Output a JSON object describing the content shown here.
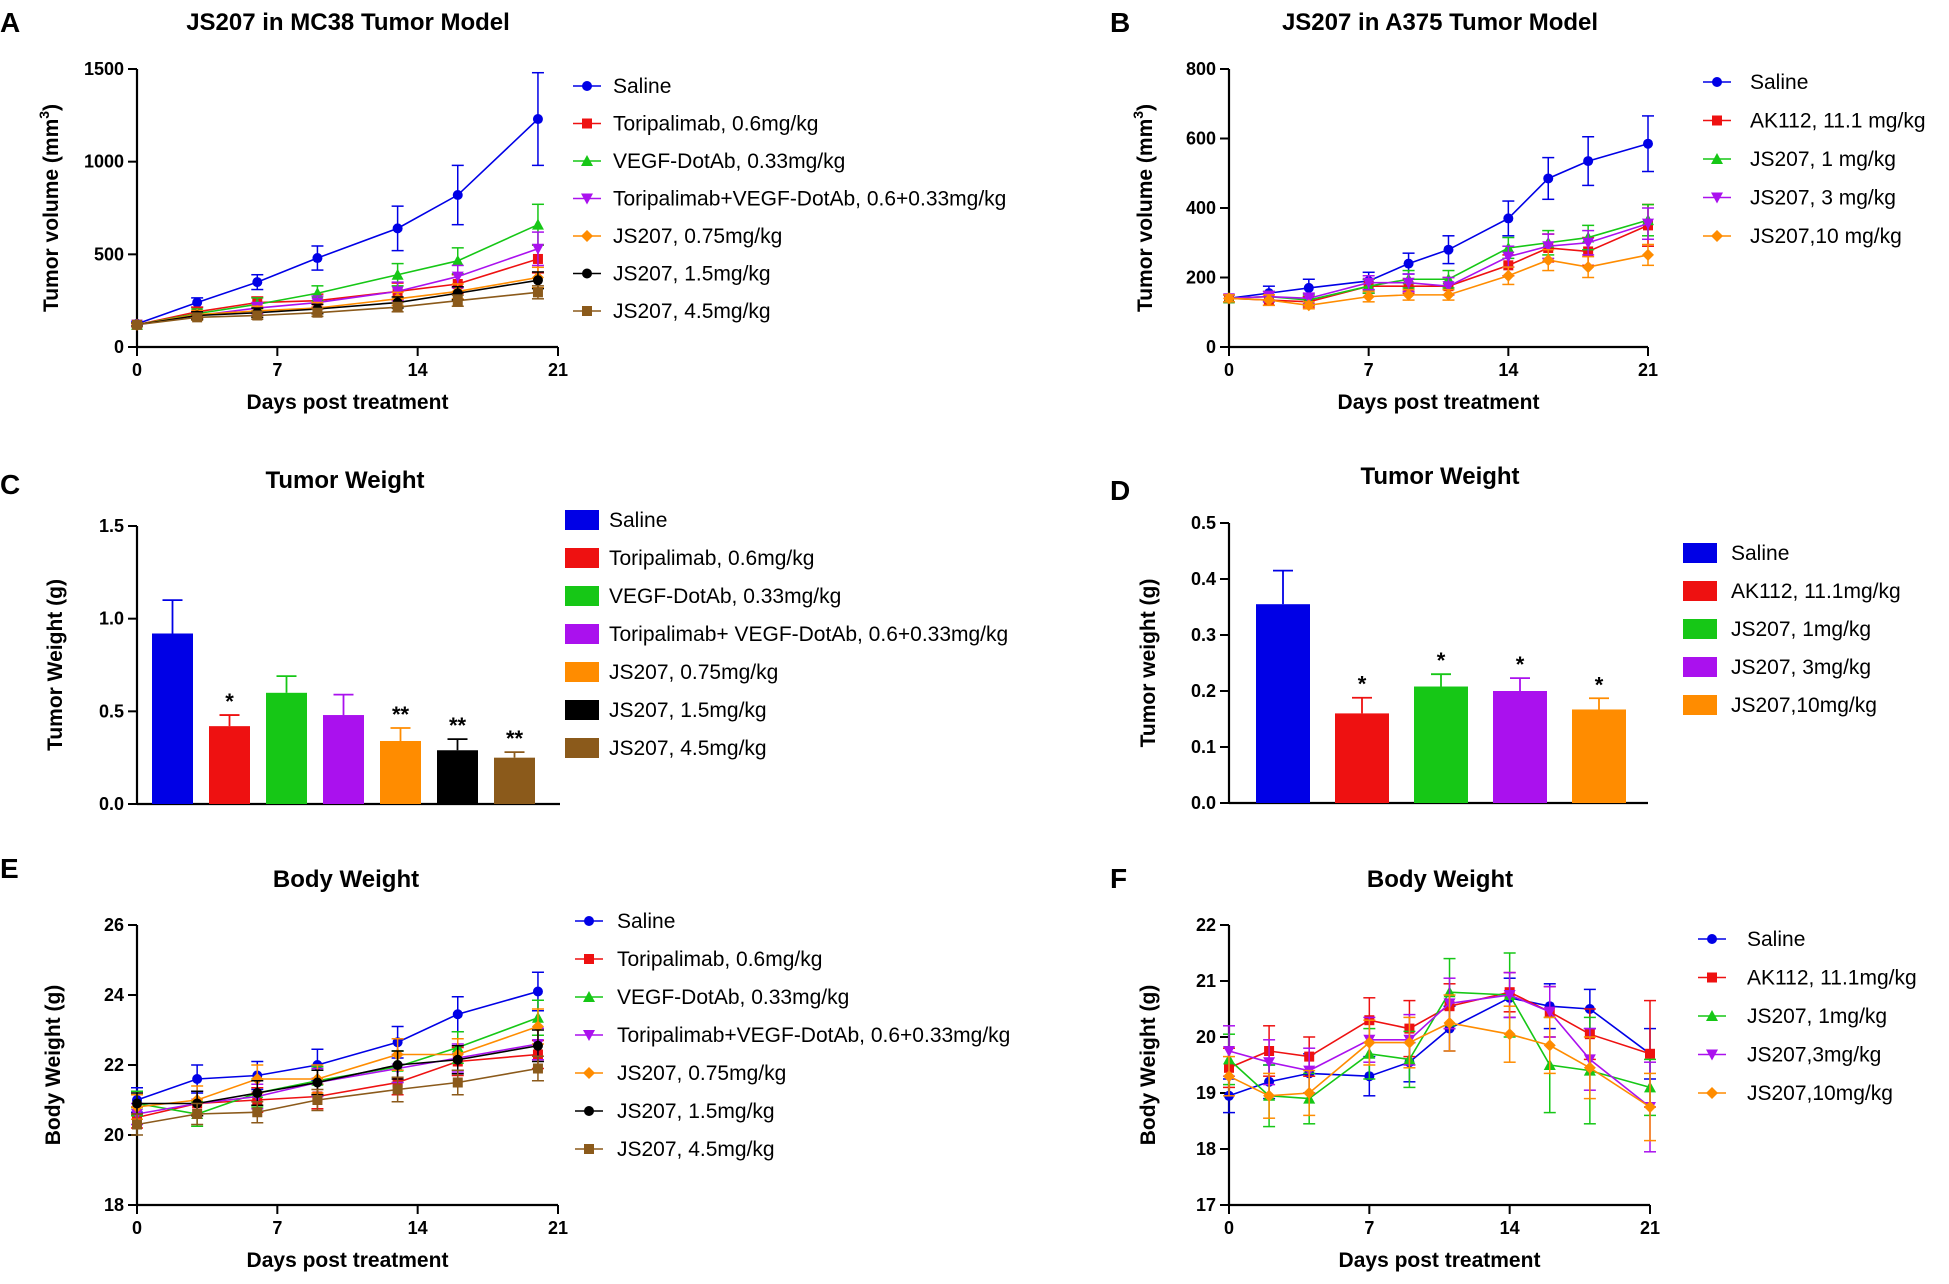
{
  "panels": {
    "A": "A",
    "B": "B",
    "C": "C",
    "D": "D",
    "E": "E",
    "F": "F"
  },
  "colors": {
    "blue": "#0000e6",
    "red": "#ee1111",
    "green": "#16c716",
    "purple": "#aa11ee",
    "orange": "#ff8c00",
    "black": "#000000",
    "brown": "#8b5a1b"
  },
  "chart_data": [
    {
      "id": "A",
      "type": "line",
      "title": "JS207 in MC38 Tumor Model",
      "xlabel": "Days post treatment",
      "ylabel": "Tumor volume (mm³)",
      "ylabel_main": "Tumor volume (mm",
      "ylabel_sup": "3",
      "ylabel_end": ")",
      "xlim": [
        0,
        21
      ],
      "ylim": [
        0,
        1500
      ],
      "xticks": [
        0,
        7,
        14,
        21
      ],
      "yticks": [
        0,
        500,
        1000,
        1500
      ],
      "x": [
        0,
        3,
        6,
        9,
        13,
        16,
        20
      ],
      "series": [
        {
          "name": "Saline",
          "color": "blue",
          "marker": "circle",
          "values": [
            125,
            240,
            350,
            480,
            640,
            820,
            1230
          ],
          "err": [
            10,
            25,
            40,
            65,
            120,
            160,
            250
          ]
        },
        {
          "name": "Toripalimab, 0.6mg/kg",
          "color": "red",
          "marker": "square",
          "values": [
            120,
            190,
            240,
            250,
            300,
            340,
            475
          ],
          "err": [
            10,
            25,
            30,
            35,
            45,
            50,
            75
          ]
        },
        {
          "name": "VEGF-DotAb, 0.33mg/kg",
          "color": "green",
          "marker": "triangle",
          "values": [
            120,
            180,
            230,
            290,
            390,
            465,
            660
          ],
          "err": [
            10,
            25,
            35,
            40,
            60,
            70,
            110
          ]
        },
        {
          "name": "Toripalimab+VEGF-DotAb, 0.6+0.33mg/kg",
          "color": "purple",
          "marker": "triangle-down",
          "values": [
            120,
            170,
            210,
            240,
            300,
            380,
            530
          ],
          "err": [
            10,
            20,
            30,
            35,
            50,
            60,
            90
          ]
        },
        {
          "name": "JS207, 0.75mg/kg",
          "color": "orange",
          "marker": "diamond",
          "values": [
            120,
            175,
            195,
            210,
            260,
            300,
            375
          ],
          "err": [
            10,
            20,
            25,
            30,
            35,
            40,
            55
          ]
        },
        {
          "name": "JS207, 1.5mg/kg",
          "color": "black",
          "marker": "circle",
          "values": [
            120,
            170,
            185,
            205,
            240,
            290,
            360
          ],
          "err": [
            10,
            20,
            25,
            25,
            30,
            35,
            45
          ]
        },
        {
          "name": "JS207, 4.5mg/kg",
          "color": "brown",
          "marker": "square",
          "values": [
            120,
            160,
            170,
            185,
            215,
            250,
            295
          ],
          "err": [
            10,
            15,
            20,
            20,
            25,
            30,
            35
          ]
        }
      ]
    },
    {
      "id": "B",
      "type": "line",
      "title": "JS207 in A375 Tumor Model",
      "xlabel": "Days post treatment",
      "ylabel": "Tumor volume (mm³)",
      "ylabel_main": "Tumor volume (mm",
      "ylabel_sup": "3",
      "ylabel_end": ")",
      "xlim": [
        0,
        21
      ],
      "ylim": [
        0,
        800
      ],
      "xticks": [
        0,
        7,
        14,
        21
      ],
      "yticks": [
        0,
        200,
        400,
        600,
        800
      ],
      "x": [
        0,
        2,
        4,
        7,
        9,
        11,
        14,
        16,
        18,
        21
      ],
      "series": [
        {
          "name": "Saline",
          "color": "blue",
          "marker": "circle",
          "values": [
            140,
            155,
            170,
            190,
            240,
            280,
            370,
            485,
            535,
            585
          ],
          "err": [
            10,
            20,
            25,
            25,
            30,
            40,
            50,
            60,
            70,
            80
          ]
        },
        {
          "name": "AK112, 11.1 mg/kg",
          "color": "red",
          "marker": "square",
          "values": [
            140,
            135,
            130,
            175,
            175,
            175,
            235,
            285,
            275,
            350
          ],
          "err": [
            10,
            15,
            15,
            20,
            20,
            25,
            30,
            40,
            40,
            60
          ]
        },
        {
          "name": "JS207, 1 mg/kg",
          "color": "green",
          "marker": "triangle",
          "values": [
            140,
            145,
            135,
            175,
            195,
            195,
            285,
            300,
            315,
            365
          ],
          "err": [
            10,
            15,
            15,
            20,
            25,
            25,
            30,
            35,
            35,
            45
          ]
        },
        {
          "name": "JS207, 3 mg/kg",
          "color": "purple",
          "marker": "triangle-down",
          "values": [
            140,
            145,
            140,
            185,
            185,
            175,
            260,
            290,
            300,
            355
          ],
          "err": [
            10,
            15,
            15,
            20,
            25,
            25,
            30,
            35,
            35,
            45
          ]
        },
        {
          "name": "JS207,10 mg/kg",
          "color": "orange",
          "marker": "diamond",
          "values": [
            140,
            135,
            120,
            145,
            150,
            150,
            205,
            250,
            230,
            265
          ],
          "err": [
            10,
            15,
            10,
            15,
            15,
            15,
            25,
            30,
            30,
            30
          ]
        }
      ]
    },
    {
      "id": "C",
      "type": "bar",
      "title": "Tumor Weight",
      "xlabel": "",
      "ylabel": "Tumor Weight (g)",
      "ylim": [
        0,
        1.5
      ],
      "yticks": [
        "0.0",
        "0.5",
        "1.0",
        "1.5"
      ],
      "ytick_values": [
        0,
        0.5,
        1.0,
        1.5
      ],
      "categories": [
        "Saline",
        "Toripalimab, 0.6mg/kg",
        "VEGF-DotAb, 0.33mg/kg",
        "Toripalimab+ VEGF-DotAb, 0.6+0.33mg/kg",
        "JS207, 0.75mg/kg",
        "JS207, 1.5mg/kg",
        "JS207, 4.5mg/kg"
      ],
      "colors": [
        "blue",
        "red",
        "green",
        "purple",
        "orange",
        "black",
        "brown"
      ],
      "values": [
        0.92,
        0.42,
        0.6,
        0.48,
        0.34,
        0.29,
        0.25
      ],
      "err": [
        0.18,
        0.06,
        0.09,
        0.11,
        0.07,
        0.06,
        0.03
      ],
      "significance": [
        "",
        "*",
        "",
        "",
        "**",
        "**",
        "**"
      ]
    },
    {
      "id": "D",
      "type": "bar",
      "title": "Tumor Weight",
      "xlabel": "",
      "ylabel": "Tumor weight (g)",
      "ylim": [
        0,
        0.5
      ],
      "yticks": [
        "0.0",
        "0.1",
        "0.2",
        "0.3",
        "0.4",
        "0.5"
      ],
      "ytick_values": [
        0,
        0.1,
        0.2,
        0.3,
        0.4,
        0.5
      ],
      "categories": [
        "Saline",
        "AK112, 11.1mg/kg",
        "JS207, 1mg/kg",
        "JS207, 3mg/kg",
        "JS207,10mg/kg"
      ],
      "colors": [
        "blue",
        "red",
        "green",
        "purple",
        "orange"
      ],
      "values": [
        0.355,
        0.16,
        0.208,
        0.2,
        0.167
      ],
      "err": [
        0.06,
        0.028,
        0.022,
        0.023,
        0.02
      ],
      "significance": [
        "",
        "*",
        "*",
        "*",
        "*"
      ]
    },
    {
      "id": "E",
      "type": "line",
      "title": "Body Weight",
      "xlabel": "Days post treatment",
      "ylabel": "Body Weight (g)",
      "xlim": [
        0,
        21
      ],
      "ylim": [
        18,
        26
      ],
      "xticks": [
        0,
        7,
        14,
        21
      ],
      "yticks": [
        18,
        20,
        22,
        24,
        26
      ],
      "x": [
        0,
        3,
        6,
        9,
        13,
        16,
        20
      ],
      "series": [
        {
          "name": "Saline",
          "color": "blue",
          "marker": "circle",
          "values": [
            21.0,
            21.6,
            21.7,
            22.0,
            22.65,
            23.45,
            24.1
          ],
          "err": [
            0.35,
            0.4,
            0.4,
            0.45,
            0.45,
            0.5,
            0.55
          ]
        },
        {
          "name": "Toripalimab, 0.6mg/kg",
          "color": "red",
          "marker": "square",
          "values": [
            20.5,
            20.9,
            21.0,
            21.1,
            21.5,
            22.1,
            22.3
          ],
          "err": [
            0.3,
            0.35,
            0.35,
            0.35,
            0.35,
            0.4,
            0.4
          ]
        },
        {
          "name": "VEGF-DotAb, 0.33mg/kg",
          "color": "green",
          "marker": "triangle",
          "values": [
            20.9,
            20.6,
            21.2,
            21.55,
            21.95,
            22.5,
            23.35
          ],
          "err": [
            0.35,
            0.35,
            0.4,
            0.4,
            0.45,
            0.45,
            0.5
          ]
        },
        {
          "name": "Toripalimab+VEGF-DotAb, 0.6+0.33mg/kg",
          "color": "purple",
          "marker": "triangle-down",
          "values": [
            20.6,
            20.9,
            21.1,
            21.5,
            21.9,
            22.2,
            22.6
          ],
          "err": [
            0.3,
            0.35,
            0.35,
            0.4,
            0.4,
            0.4,
            0.45
          ]
        },
        {
          "name": "JS207, 0.75mg/kg",
          "color": "orange",
          "marker": "diamond",
          "values": [
            20.8,
            21.0,
            21.6,
            21.6,
            22.3,
            22.3,
            23.1
          ],
          "err": [
            0.35,
            0.4,
            0.4,
            0.4,
            0.45,
            0.45,
            0.5
          ]
        },
        {
          "name": "JS207, 1.5mg/kg",
          "color": "black",
          "marker": "circle",
          "values": [
            20.9,
            20.9,
            21.2,
            21.5,
            22.0,
            22.15,
            22.55
          ],
          "err": [
            0.3,
            0.35,
            0.35,
            0.35,
            0.4,
            0.4,
            0.45
          ]
        },
        {
          "name": "JS207, 4.5mg/kg",
          "color": "brown",
          "marker": "square",
          "values": [
            20.3,
            20.6,
            20.65,
            21.0,
            21.3,
            21.5,
            21.9
          ],
          "err": [
            0.3,
            0.3,
            0.3,
            0.3,
            0.35,
            0.35,
            0.35
          ]
        }
      ]
    },
    {
      "id": "F",
      "type": "line",
      "title": "Body Weight",
      "xlabel": "Days post treatment",
      "ylabel": "Body Weight (g)",
      "xlim": [
        0,
        21
      ],
      "ylim": [
        17,
        22
      ],
      "xticks": [
        0,
        7,
        14,
        21
      ],
      "yticks": [
        17,
        18,
        19,
        20,
        21,
        22
      ],
      "x": [
        0,
        2,
        4,
        7,
        9,
        11,
        14,
        16,
        18,
        21
      ],
      "series": [
        {
          "name": "Saline",
          "color": "blue",
          "marker": "circle",
          "values": [
            18.95,
            19.2,
            19.35,
            19.3,
            19.55,
            20.15,
            20.7,
            20.55,
            20.5,
            19.7
          ],
          "err": [
            0.3,
            0.3,
            0.35,
            0.35,
            0.35,
            0.4,
            0.35,
            0.4,
            0.35,
            0.45
          ]
        },
        {
          "name": "AK112, 11.1mg/kg",
          "color": "red",
          "marker": "square",
          "values": [
            19.45,
            19.75,
            19.65,
            20.3,
            20.15,
            20.55,
            20.8,
            20.45,
            20.05,
            19.7
          ],
          "err": [
            0.35,
            0.45,
            0.35,
            0.4,
            0.5,
            0.4,
            0.35,
            0.45,
            0.45,
            0.95
          ]
        },
        {
          "name": "JS207, 1mg/kg",
          "color": "green",
          "marker": "triangle",
          "values": [
            19.6,
            18.95,
            18.9,
            19.7,
            19.6,
            20.8,
            20.75,
            19.5,
            19.4,
            19.1
          ],
          "err": [
            0.45,
            0.55,
            0.45,
            0.45,
            0.5,
            0.6,
            0.75,
            0.85,
            0.95,
            0.5
          ]
        },
        {
          "name": "JS207,3mg/kg",
          "color": "purple",
          "marker": "triangle-down",
          "values": [
            19.75,
            19.55,
            19.4,
            19.95,
            19.95,
            20.6,
            20.75,
            20.45,
            19.6,
            18.75
          ],
          "err": [
            0.45,
            0.4,
            0.4,
            0.4,
            0.45,
            0.45,
            0.4,
            0.45,
            0.55,
            0.8
          ]
        },
        {
          "name": "JS207,10mg/kg",
          "color": "orange",
          "marker": "diamond",
          "values": [
            19.3,
            18.95,
            19.0,
            19.9,
            19.9,
            20.25,
            20.05,
            19.85,
            19.45,
            18.75
          ],
          "err": [
            0.35,
            0.4,
            0.4,
            0.4,
            0.45,
            0.5,
            0.5,
            0.5,
            0.55,
            0.6
          ]
        }
      ]
    }
  ]
}
